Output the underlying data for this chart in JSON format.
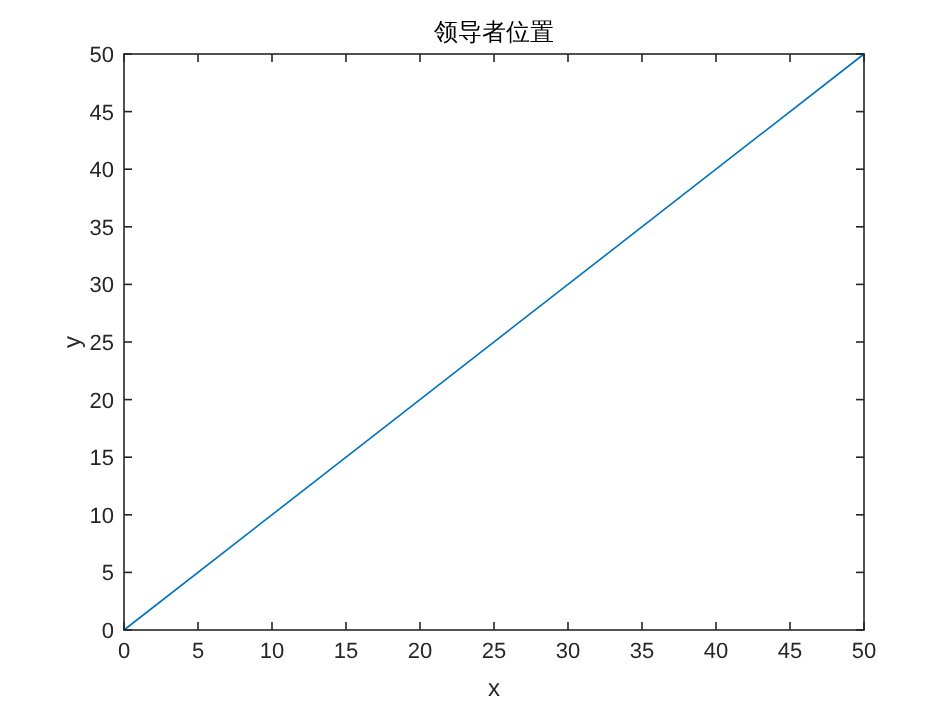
{
  "chart_data": {
    "type": "line",
    "title": "领导者位置",
    "xlabel": "x",
    "ylabel": "y",
    "x": [
      0,
      50
    ],
    "series": [
      {
        "color": "#0072bd",
        "values": [
          0,
          50
        ]
      }
    ],
    "xlim": [
      0,
      50
    ],
    "ylim": [
      0,
      50
    ],
    "xticks": [
      0,
      5,
      10,
      15,
      20,
      25,
      30,
      35,
      40,
      45,
      50
    ],
    "yticks": [
      0,
      5,
      10,
      15,
      20,
      25,
      30,
      35,
      40,
      45,
      50
    ]
  }
}
